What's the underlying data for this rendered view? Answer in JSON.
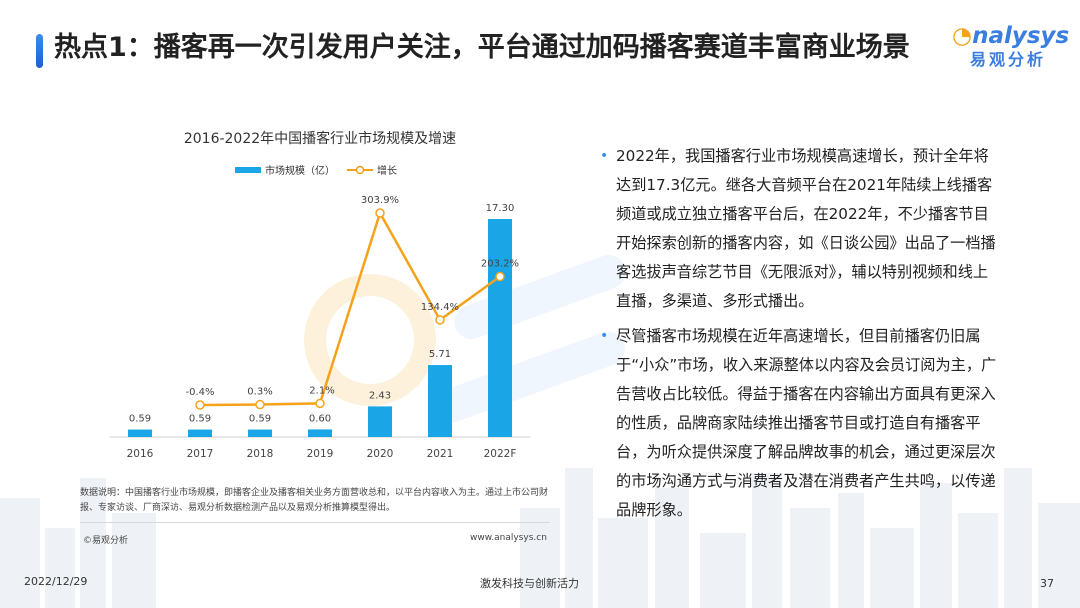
{
  "title": "热点1：播客再一次引发用户关注，平台通过加码播客赛道丰富商业场景",
  "logo": {
    "en": "nalysys",
    "cn": "易观分析"
  },
  "chart_data": {
    "type": "bar+line",
    "title": "2016-2022年中国播客行业市场规模及增速",
    "categories": [
      "2016",
      "2017",
      "2018",
      "2019",
      "2020",
      "2021",
      "2022F"
    ],
    "series": [
      {
        "name": "市场规模（亿）",
        "type": "bar",
        "values": [
          0.59,
          0.59,
          0.59,
          0.6,
          2.43,
          5.71,
          17.3
        ],
        "labels": [
          "0.59",
          "0.59",
          "0.59",
          "0.60",
          "2.43",
          "5.71",
          "17.30"
        ],
        "color": "#1aa6e6"
      },
      {
        "name": "增长",
        "type": "line",
        "x": [
          "2017",
          "2018",
          "2019",
          "2020",
          "2021",
          "2022F"
        ],
        "values": [
          -0.4,
          0.3,
          2.1,
          303.9,
          134.4,
          203.2
        ],
        "labels": [
          "-0.4%",
          "0.3%",
          "2.1%",
          "303.9%",
          "134.4%",
          "203.2%"
        ],
        "color": "#f5a21a"
      }
    ],
    "legend_position": "top-center",
    "grid": false
  },
  "source_note": "数据说明：中国播客行业市场规模，即播客企业及播客相关业务方面营收总和，以平台内容收入为主。通过上市公司财报、专家访谈、厂商深访、易观分析数据检测产品以及易观分析推算模型得出。",
  "copyright": "©易观分析",
  "site": "www.analysys.cn",
  "bullets": [
    "2022年，我国播客行业市场规模高速增长，预计全年将达到17.3亿元。继各大音频平台在2021年陆续上线播客频道或成立独立播客平台后，在2022年，不少播客节目开始探索创新的播客内容，如《日谈公园》出品了一档播客选拔声音综艺节目《无限派对》，辅以特别视频和线上直播，多渠道、多形式播出。",
    "尽管播客市场规模在近年高速增长，但目前播客仍旧属于“小众”市场，收入来源整体以内容及会员订阅为主，广告营收占比较低。得益于播客在内容输出方面具有更深入的性质，品牌商家陆续推出播客节目或打造自有播客平台，为听众提供深度了解品牌故事的机会，通过更深层次的市场沟通方式与消费者及潜在消费者产生共鸣，以传递品牌形象。"
  ],
  "footer": {
    "date": "2022/12/29",
    "slogan": "激发科技与创新活力",
    "page": "37"
  }
}
